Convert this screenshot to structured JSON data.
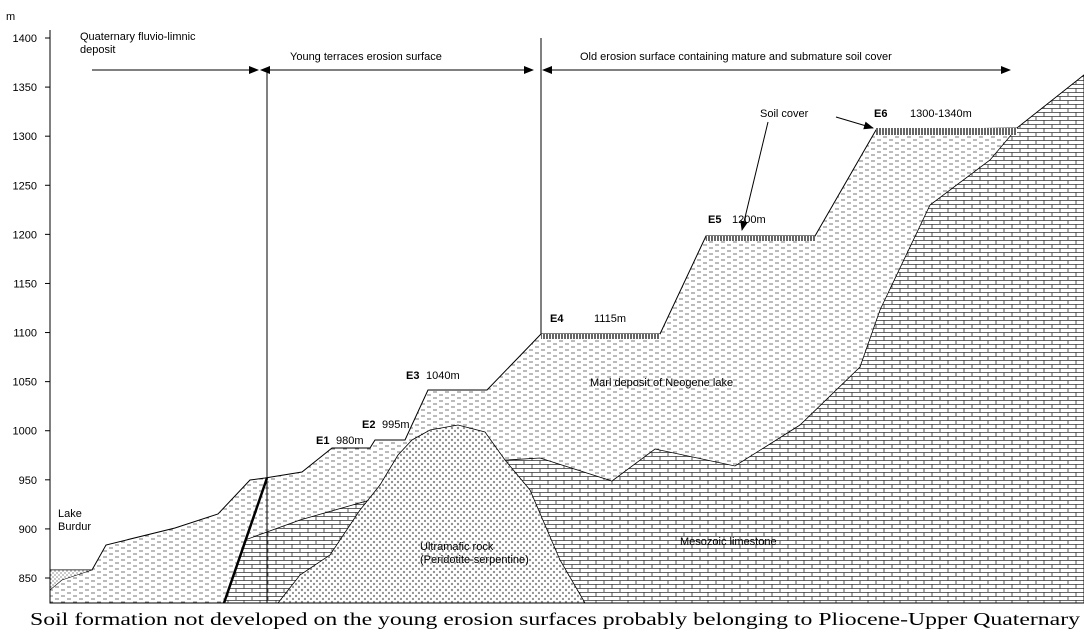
{
  "axis": {
    "unit": "m",
    "ticks": [
      1400,
      1350,
      1300,
      1250,
      1200,
      1150,
      1100,
      1050,
      1000,
      950,
      900,
      850
    ]
  },
  "zones": [
    "Quaternary fluvio-limnic deposit",
    "Young terraces erosion surface",
    "Old erosion surface containing mature and submature soil cover"
  ],
  "terraces": [
    {
      "id": "E1",
      "elevation": "980m"
    },
    {
      "id": "E2",
      "elevation": "995m"
    },
    {
      "id": "E3",
      "elevation": "1040m"
    },
    {
      "id": "E4",
      "elevation": "1115m"
    },
    {
      "id": "E5",
      "elevation": "1200m"
    },
    {
      "id": "E6",
      "elevation": "1300-1340m"
    }
  ],
  "labels": {
    "soil_cover": "Soil cover",
    "lake": "Lake Burdur",
    "marl": "Marl deposit of Neogene lake",
    "ultramafic": "Ultramafic rock (Peridotite-serpentine)",
    "limestone": "Mesozoic limestone"
  },
  "caption": "Soil formation not developed on the young erosion surfaces probably belonging to Pliocene-Upper Quaternary"
}
